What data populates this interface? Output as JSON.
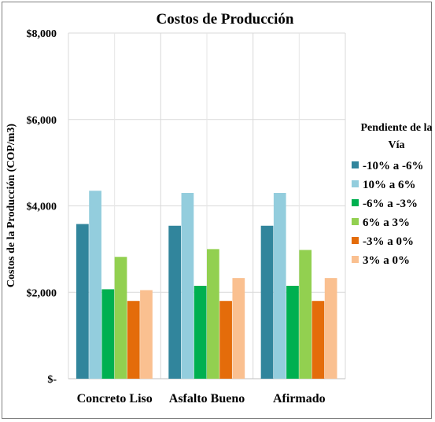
{
  "chart_data": {
    "type": "bar",
    "title": "Costos de Producción",
    "xlabel": "",
    "ylabel": "Costos de la Producción (COP/m3)",
    "categories": [
      "Concreto Liso",
      "Asfalto Bueno",
      "Afirmado"
    ],
    "ylim": [
      0,
      8000
    ],
    "yticks": [
      0,
      2000,
      4000,
      6000,
      8000
    ],
    "ytick_labels": [
      "$-",
      "$2,000",
      "$4,000",
      "$6,000",
      "$8,000"
    ],
    "grid": true,
    "legend": {
      "title": "Pendiente de la Vía",
      "placement": "right"
    },
    "series": [
      {
        "name": "-10% a -6%",
        "color": "#31859c",
        "values": [
          3580,
          3540,
          3540
        ]
      },
      {
        "name": "10% a 6%",
        "color": "#93cddd",
        "values": [
          4350,
          4300,
          4300
        ]
      },
      {
        "name": "-6% a -3%",
        "color": "#00b050",
        "values": [
          2070,
          2150,
          2150
        ]
      },
      {
        "name": "6% a 3%",
        "color": "#92d050",
        "values": [
          2820,
          3000,
          2980
        ]
      },
      {
        "name": "-3% a 0%",
        "color": "#e46c0a",
        "values": [
          1800,
          1800,
          1800
        ]
      },
      {
        "name": "3% a 0%",
        "color": "#fac090",
        "values": [
          2050,
          2330,
          2330
        ]
      }
    ]
  }
}
